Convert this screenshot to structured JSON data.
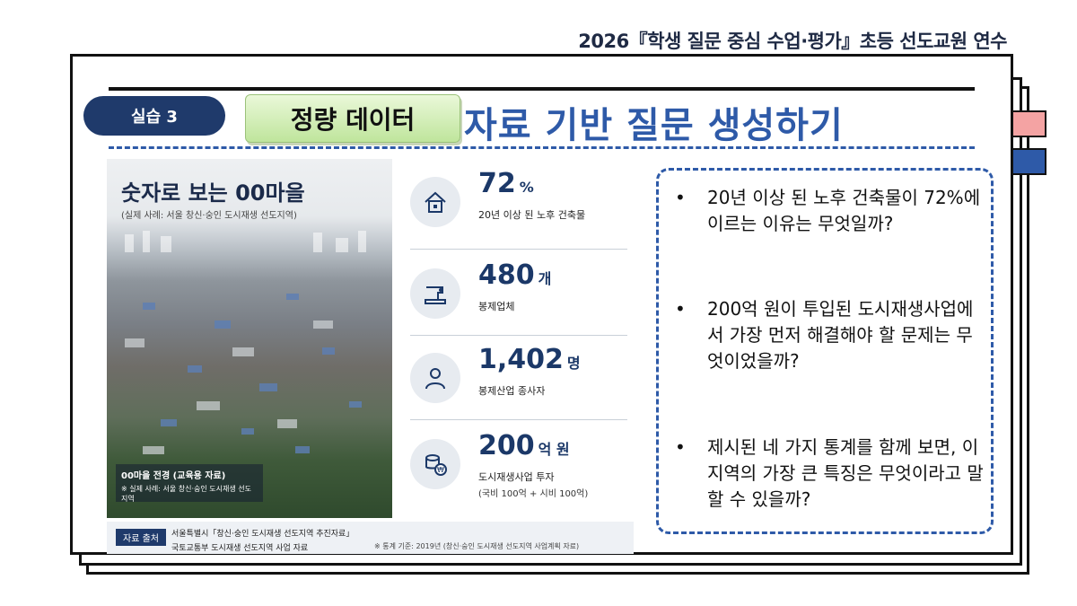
{
  "header": {
    "title": "2026『학생 질문 중심 수업·평가』초등 선도교원 연수"
  },
  "colors": {
    "accent_blue": "#2e5aa8",
    "navy": "#1f3a6b",
    "tab_pink": "#f4a3a3",
    "tab_blue": "#2e5aa8",
    "chip_green": "#bfe59c"
  },
  "slide": {
    "pill_label": "실습 3",
    "chip_label": "정량 데이터",
    "title": "자료 기반 질문 생성하기"
  },
  "infographic": {
    "title": "숫자로 보는 00마을",
    "subtitle": "(실제 사례: 서울 창신·숭인 도시재생 선도지역)",
    "caption_title": "00마을 전경 (교육용 자료)",
    "caption_sub": "※ 실제 사례: 서울 창신·숭인 도시재생 선도지역",
    "stats": [
      {
        "icon": "house-icon",
        "value": "72",
        "unit": "%",
        "label": "20년 이상 된 노후 건축물",
        "sub": ""
      },
      {
        "icon": "sewing-machine-icon",
        "value": "480",
        "unit": "개",
        "label": "봉제업체",
        "sub": ""
      },
      {
        "icon": "worker-icon",
        "value": "1,402",
        "unit": "명",
        "label": "봉제산업 종사자",
        "sub": ""
      },
      {
        "icon": "coins-icon",
        "value": "200",
        "unit": "억 원",
        "label": "도시재생사업 투자",
        "sub": "(국비 100억 + 시비 100억)"
      }
    ],
    "source_tag": "자료 출처",
    "source_lines": [
      "서울특별시「창신·숭인 도시재생 선도지역 추진자료」",
      "국토교통부 도시재생 선도지역 사업 자료"
    ],
    "source_note": "※ 통계 기준: 2019년 (창신·숭인 도시재생 선도지역 사업계획 자료)"
  },
  "questions": [
    {
      "bullet": "•",
      "text": "20년 이상 된 노후 건축물이 72%에 이르는 이유는 무엇일까?"
    },
    {
      "bullet": "•",
      "text": "200억 원이 투입된 도시재생사업에서 가장 먼저 해결해야 할 문제는 무엇이었을까?"
    },
    {
      "bullet": "•",
      "text": "제시된 네 가지 통계를 함께 보면, 이 지역의 가장 큰 특징은 무엇이라고 말할 수 있을까?"
    }
  ]
}
